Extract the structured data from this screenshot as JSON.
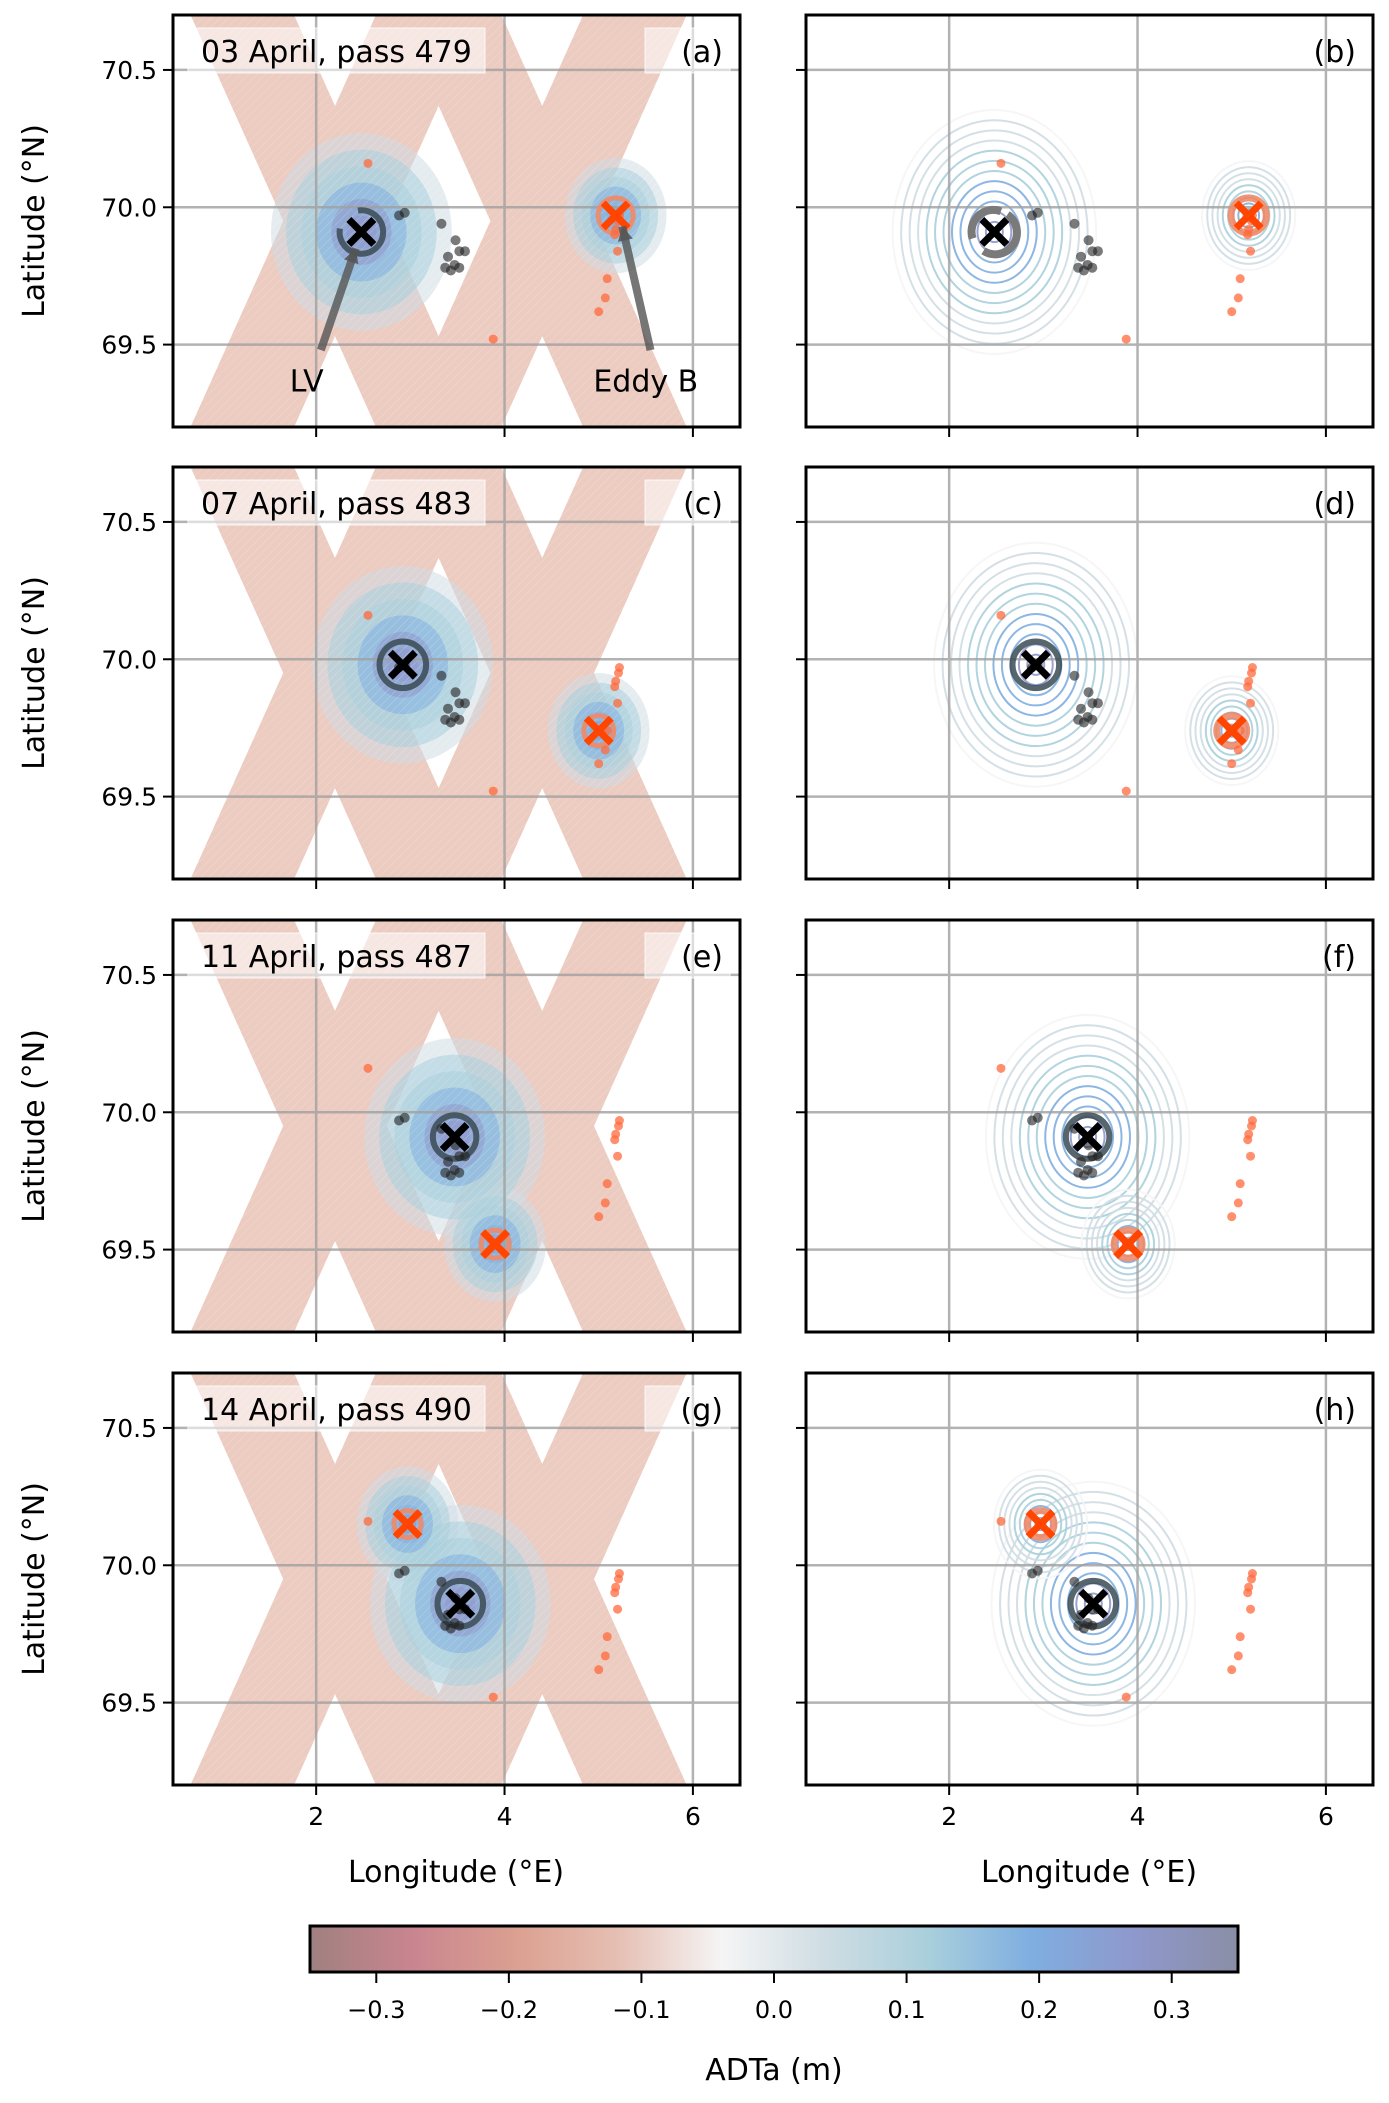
{
  "chart_data": {
    "type": "contour",
    "figure_description": "Eight map panels of absolute dynamic topography anomaly (ADTa). Left column: observed swath data with contours; right column: fitted model contours. Black X = LV (Lofoten Vortex) center, orange X = Eddy B center; circles = eddy radii; dots = float/drifter positions.",
    "xlabel": "Longitude (°E)",
    "ylabel": "Latitude (°N)",
    "xlim": [
      0.48,
      6.5
    ],
    "ylim": [
      69.2,
      70.7
    ],
    "xticks": [
      2,
      4,
      6
    ],
    "yticks": [
      69.5,
      70.0,
      70.5
    ],
    "xtick_labels": [
      "2",
      "4",
      "6"
    ],
    "ytick_labels": [
      "69.5",
      "70.0",
      "70.5"
    ],
    "grid": true,
    "annotations": {
      "lv_label": "LV",
      "eddy_b_label": "Eddy B"
    },
    "colors": {
      "lv": "#000000",
      "lv_circle": "#3a4a52",
      "eddy_b": "#ff4500",
      "eddy_b_circle": "#f08a68",
      "positive": "#1f6fc0",
      "negative": "#c0603e"
    },
    "colorbar": {
      "label": "ADTa (m)",
      "range": [
        -0.35,
        0.35
      ],
      "ticks": [
        -0.3,
        -0.2,
        -0.1,
        0.0,
        0.1,
        0.2,
        0.3
      ],
      "tick_labels": [
        "−0.3",
        "−0.2",
        "−0.1",
        "0.0",
        "0.1",
        "0.2",
        "0.3"
      ],
      "stops": [
        "#a08080",
        "#c98590",
        "#dba090",
        "#e6c0b4",
        "#f5f5f5",
        "#cfdde3",
        "#a9cfdc",
        "#7faee0",
        "#8f98cc",
        "#8a8ea6"
      ]
    },
    "panels": [
      {
        "id": "a",
        "label": "(a)",
        "title": "03 April, pass 479",
        "type": "observed",
        "lv": {
          "lon": 2.48,
          "lat": 69.91,
          "r": 0.42,
          "arc": true
        },
        "eddy_b": {
          "lon": 5.18,
          "lat": 69.97,
          "r": 0.34
        },
        "arrows": true
      },
      {
        "id": "b",
        "label": "(b)",
        "title": "",
        "type": "model",
        "lv": {
          "lon": 2.48,
          "lat": 69.91,
          "r": 0.42,
          "arc": true
        },
        "eddy_b": {
          "lon": 5.18,
          "lat": 69.97,
          "r": 0.34
        }
      },
      {
        "id": "c",
        "label": "(c)",
        "title": "07 April, pass 483",
        "type": "observed",
        "lv": {
          "lon": 2.92,
          "lat": 69.98,
          "r": 0.45
        },
        "eddy_b": {
          "lon": 5.0,
          "lat": 69.74,
          "r": 0.29
        }
      },
      {
        "id": "d",
        "label": "(d)",
        "title": "",
        "type": "model",
        "lv": {
          "lon": 2.92,
          "lat": 69.98,
          "r": 0.45
        },
        "eddy_b": {
          "lon": 5.0,
          "lat": 69.74,
          "r": 0.29
        }
      },
      {
        "id": "e",
        "label": "(e)",
        "title": "11 April, pass 487",
        "type": "observed",
        "lv": {
          "lon": 3.47,
          "lat": 69.91,
          "r": 0.42
        },
        "eddy_b": {
          "lon": 3.9,
          "lat": 69.52,
          "r": 0.27
        }
      },
      {
        "id": "f",
        "label": "(f)",
        "title": "",
        "type": "model",
        "lv": {
          "lon": 3.47,
          "lat": 69.91,
          "r": 0.42
        },
        "eddy_b": {
          "lon": 3.9,
          "lat": 69.52,
          "r": 0.27
        }
      },
      {
        "id": "g",
        "label": "(g)",
        "title": "14 April, pass 490",
        "type": "observed",
        "lv": {
          "lon": 3.53,
          "lat": 69.86,
          "r": 0.44
        },
        "eddy_b": {
          "lon": 2.97,
          "lat": 70.15,
          "r": 0.26
        }
      },
      {
        "id": "h",
        "label": "(h)",
        "title": "",
        "type": "model",
        "lv": {
          "lon": 3.53,
          "lat": 69.86,
          "r": 0.44
        },
        "eddy_b": {
          "lon": 2.97,
          "lat": 70.15,
          "r": 0.26
        }
      }
    ],
    "black_floats": [
      [
        2.88,
        69.97
      ],
      [
        2.94,
        69.98
      ],
      [
        3.33,
        69.94
      ],
      [
        3.48,
        69.88
      ],
      [
        3.52,
        69.84
      ],
      [
        3.4,
        69.82
      ],
      [
        3.47,
        69.79
      ],
      [
        3.37,
        69.78
      ],
      [
        3.43,
        69.77
      ],
      [
        3.52,
        69.78
      ],
      [
        3.58,
        69.84
      ]
    ],
    "orange_floats": [
      [
        2.55,
        70.16
      ],
      [
        3.88,
        69.52
      ],
      [
        5.22,
        69.97
      ],
      [
        5.21,
        69.95
      ],
      [
        5.18,
        69.92
      ],
      [
        5.17,
        69.9
      ],
      [
        5.2,
        69.84
      ],
      [
        5.09,
        69.74
      ],
      [
        5.07,
        69.67
      ],
      [
        5.0,
        69.62
      ]
    ]
  }
}
